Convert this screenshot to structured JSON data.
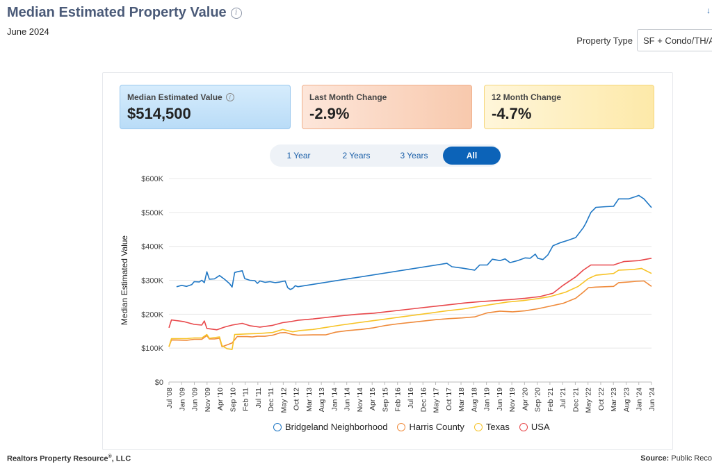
{
  "header": {
    "title": "Median Estimated Property Value",
    "subtitle": "June 2024",
    "corner_glyph": "↓"
  },
  "property_type": {
    "label": "Property Type",
    "value": "SF + Condo/TH/A"
  },
  "cards": [
    {
      "label": "Median Estimated Value",
      "value": "$514,500",
      "info": "i"
    },
    {
      "label": "Last Month Change",
      "value": "-2.9%"
    },
    {
      "label": "12 Month Change",
      "value": "-4.7%"
    }
  ],
  "range_tabs": [
    {
      "label": "1 Year",
      "active": false
    },
    {
      "label": "2 Years",
      "active": false
    },
    {
      "label": "3 Years",
      "active": false
    },
    {
      "label": "All",
      "active": true
    }
  ],
  "footer": {
    "left_main": "Realtors Property Resource",
    "left_sup": "®",
    "left_tail": ", LLC",
    "right_label": "Source:",
    "right_value": " Public Reco"
  },
  "chart_data": {
    "type": "line",
    "ylabel": "Median Estimated Value",
    "ylim": [
      0,
      600000
    ],
    "yticks": [
      0,
      100000,
      200000,
      300000,
      400000,
      500000,
      600000
    ],
    "ytick_labels": [
      "$0",
      "$100K",
      "$200K",
      "$300K",
      "$400K",
      "$500K",
      "$600K"
    ],
    "xlim": [
      "2008-07",
      "2024-06"
    ],
    "xtick_labels": [
      "Jul '08",
      "Jan '09",
      "Jun '09",
      "Nov '09",
      "Apr '10",
      "Sep '10",
      "Feb '11",
      "Jul '11",
      "Dec '11",
      "May '12",
      "Oct '12",
      "Mar '13",
      "Aug '13",
      "Jan '14",
      "Jun '14",
      "Nov '14",
      "Apr '15",
      "Sep '15",
      "Feb '16",
      "Jul '16",
      "Dec '16",
      "May '17",
      "Oct '17",
      "Mar '18",
      "Aug '18",
      "Jan '19",
      "Jun '19",
      "Nov '19",
      "Apr '20",
      "Sep '20",
      "Feb '21",
      "Jul '21",
      "Dec '21",
      "May '22",
      "Oct '22",
      "Mar '23",
      "Aug '23",
      "Jan '24",
      "Jun '24"
    ],
    "grid": true,
    "legend_position": "bottom",
    "series": [
      {
        "name": "Bridgeland Neighborhood",
        "color": "#1f77c4",
        "points": [
          [
            "2008-10",
            281000
          ],
          [
            "2008-12",
            285000
          ],
          [
            "2009-02",
            282000
          ],
          [
            "2009-04",
            287000
          ],
          [
            "2009-05",
            296000
          ],
          [
            "2009-07",
            295000
          ],
          [
            "2009-08",
            300000
          ],
          [
            "2009-09",
            293000
          ],
          [
            "2009-10",
            325000
          ],
          [
            "2009-11",
            303000
          ],
          [
            "2010-01",
            304000
          ],
          [
            "2010-03",
            314000
          ],
          [
            "2010-05",
            303000
          ],
          [
            "2010-07",
            290000
          ],
          [
            "2010-08",
            280000
          ],
          [
            "2010-09",
            323000
          ],
          [
            "2010-10",
            325000
          ],
          [
            "2010-12",
            328000
          ],
          [
            "2011-01",
            305000
          ],
          [
            "2011-03",
            300000
          ],
          [
            "2011-05",
            299000
          ],
          [
            "2011-06",
            291000
          ],
          [
            "2011-07",
            298000
          ],
          [
            "2011-09",
            294000
          ],
          [
            "2011-11",
            296000
          ],
          [
            "2012-01",
            293000
          ],
          [
            "2012-03",
            295000
          ],
          [
            "2012-05",
            298000
          ],
          [
            "2012-06",
            278000
          ],
          [
            "2012-07",
            273000
          ],
          [
            "2012-08",
            276000
          ],
          [
            "2012-09",
            284000
          ],
          [
            "2012-10",
            281000
          ],
          [
            "2017-09",
            350000
          ],
          [
            "2017-11",
            340000
          ],
          [
            "2018-03",
            336000
          ],
          [
            "2018-08",
            330000
          ],
          [
            "2018-10",
            345000
          ],
          [
            "2019-01",
            345000
          ],
          [
            "2019-03",
            362000
          ],
          [
            "2019-06",
            358000
          ],
          [
            "2019-08",
            363000
          ],
          [
            "2019-10",
            352000
          ],
          [
            "2020-01",
            358000
          ],
          [
            "2020-04",
            366000
          ],
          [
            "2020-06",
            365000
          ],
          [
            "2020-08",
            377000
          ],
          [
            "2020-09",
            365000
          ],
          [
            "2020-11",
            361000
          ],
          [
            "2021-01",
            375000
          ],
          [
            "2021-03",
            402000
          ],
          [
            "2021-06",
            411000
          ],
          [
            "2021-09",
            418000
          ],
          [
            "2021-12",
            426000
          ],
          [
            "2022-03",
            455000
          ],
          [
            "2022-04",
            468000
          ],
          [
            "2022-06",
            500000
          ],
          [
            "2022-08",
            515000
          ],
          [
            "2022-12",
            517000
          ],
          [
            "2023-03",
            518000
          ],
          [
            "2023-05",
            540000
          ],
          [
            "2023-09",
            540000
          ],
          [
            "2023-11",
            545000
          ],
          [
            "2024-01",
            550000
          ],
          [
            "2024-03",
            540000
          ],
          [
            "2024-06",
            514500
          ]
        ]
      },
      {
        "name": "Harris County",
        "color": "#ef8a3a",
        "points": [
          [
            "2008-07",
            104000
          ],
          [
            "2008-08",
            124000
          ],
          [
            "2009-02",
            123000
          ],
          [
            "2009-05",
            126000
          ],
          [
            "2009-08",
            126000
          ],
          [
            "2009-10",
            137000
          ],
          [
            "2009-11",
            127000
          ],
          [
            "2010-01",
            127000
          ],
          [
            "2010-03",
            129000
          ],
          [
            "2010-04",
            104000
          ],
          [
            "2010-08",
            115000
          ],
          [
            "2010-10",
            134000
          ],
          [
            "2011-02",
            134000
          ],
          [
            "2011-04",
            133000
          ],
          [
            "2011-06",
            135000
          ],
          [
            "2011-09",
            135000
          ],
          [
            "2011-12",
            138000
          ],
          [
            "2012-03",
            145000
          ],
          [
            "2012-05",
            146000
          ],
          [
            "2012-08",
            140000
          ],
          [
            "2012-10",
            138000
          ],
          [
            "2013-04",
            139000
          ],
          [
            "2013-09",
            139000
          ],
          [
            "2014-01",
            147000
          ],
          [
            "2014-06",
            152000
          ],
          [
            "2014-11",
            155000
          ],
          [
            "2015-04",
            160000
          ],
          [
            "2015-09",
            167000
          ],
          [
            "2016-02",
            172000
          ],
          [
            "2016-07",
            176000
          ],
          [
            "2016-12",
            180000
          ],
          [
            "2017-05",
            184000
          ],
          [
            "2017-10",
            187000
          ],
          [
            "2018-03",
            189000
          ],
          [
            "2018-08",
            192000
          ],
          [
            "2019-01",
            204000
          ],
          [
            "2019-06",
            209000
          ],
          [
            "2019-11",
            207000
          ],
          [
            "2020-04",
            210000
          ],
          [
            "2020-09",
            216000
          ],
          [
            "2021-02",
            224000
          ],
          [
            "2021-07",
            232000
          ],
          [
            "2021-12",
            247000
          ],
          [
            "2022-03",
            265000
          ],
          [
            "2022-05",
            278000
          ],
          [
            "2022-08",
            280000
          ],
          [
            "2023-03",
            282000
          ],
          [
            "2023-05",
            293000
          ],
          [
            "2023-09",
            295000
          ],
          [
            "2023-12",
            297000
          ],
          [
            "2024-03",
            298000
          ],
          [
            "2024-06",
            282000
          ]
        ]
      },
      {
        "name": "Texas",
        "color": "#f7c327",
        "points": [
          [
            "2008-07",
            104000
          ],
          [
            "2008-08",
            128000
          ],
          [
            "2009-02",
            128000
          ],
          [
            "2009-05",
            130000
          ],
          [
            "2009-08",
            130000
          ],
          [
            "2009-10",
            140000
          ],
          [
            "2009-11",
            129000
          ],
          [
            "2010-01",
            131000
          ],
          [
            "2010-03",
            133000
          ],
          [
            "2010-04",
            107000
          ],
          [
            "2010-06",
            98000
          ],
          [
            "2010-08",
            96000
          ],
          [
            "2010-09",
            140000
          ],
          [
            "2011-02",
            142000
          ],
          [
            "2011-06",
            143000
          ],
          [
            "2011-12",
            146000
          ],
          [
            "2012-04",
            155000
          ],
          [
            "2012-08",
            148000
          ],
          [
            "2012-11",
            152000
          ],
          [
            "2013-04",
            155000
          ],
          [
            "2013-09",
            161000
          ],
          [
            "2014-03",
            168000
          ],
          [
            "2014-09",
            174000
          ],
          [
            "2015-03",
            180000
          ],
          [
            "2015-09",
            186000
          ],
          [
            "2016-03",
            192000
          ],
          [
            "2016-09",
            198000
          ],
          [
            "2017-03",
            204000
          ],
          [
            "2017-09",
            210000
          ],
          [
            "2018-03",
            215000
          ],
          [
            "2018-09",
            222000
          ],
          [
            "2019-03",
            229000
          ],
          [
            "2019-09",
            236000
          ],
          [
            "2020-03",
            240000
          ],
          [
            "2020-09",
            246000
          ],
          [
            "2021-02",
            252000
          ],
          [
            "2021-08",
            265000
          ],
          [
            "2022-01",
            282000
          ],
          [
            "2022-05",
            305000
          ],
          [
            "2022-08",
            315000
          ],
          [
            "2023-03",
            320000
          ],
          [
            "2023-05",
            330000
          ],
          [
            "2023-11",
            332000
          ],
          [
            "2024-02",
            335000
          ],
          [
            "2024-06",
            320000
          ]
        ]
      },
      {
        "name": "USA",
        "color": "#e8474a",
        "points": [
          [
            "2008-07",
            160000
          ],
          [
            "2008-08",
            183000
          ],
          [
            "2009-01",
            178000
          ],
          [
            "2009-05",
            170000
          ],
          [
            "2009-08",
            168000
          ],
          [
            "2009-09",
            180000
          ],
          [
            "2009-10",
            158000
          ],
          [
            "2010-02",
            154000
          ],
          [
            "2010-05",
            162000
          ],
          [
            "2010-08",
            168000
          ],
          [
            "2010-12",
            173000
          ],
          [
            "2011-03",
            166000
          ],
          [
            "2011-07",
            162000
          ],
          [
            "2011-12",
            167000
          ],
          [
            "2012-04",
            175000
          ],
          [
            "2012-07",
            178000
          ],
          [
            "2012-10",
            182000
          ],
          [
            "2013-04",
            186000
          ],
          [
            "2013-10",
            191000
          ],
          [
            "2014-04",
            196000
          ],
          [
            "2014-10",
            200000
          ],
          [
            "2015-04",
            203000
          ],
          [
            "2015-10",
            208000
          ],
          [
            "2016-04",
            213000
          ],
          [
            "2016-10",
            218000
          ],
          [
            "2017-04",
            223000
          ],
          [
            "2017-10",
            228000
          ],
          [
            "2018-04",
            233000
          ],
          [
            "2018-10",
            237000
          ],
          [
            "2019-04",
            240000
          ],
          [
            "2019-10",
            243000
          ],
          [
            "2020-04",
            247000
          ],
          [
            "2020-10",
            252000
          ],
          [
            "2021-03",
            262000
          ],
          [
            "2021-07",
            285000
          ],
          [
            "2021-12",
            310000
          ],
          [
            "2022-03",
            330000
          ],
          [
            "2022-06",
            345000
          ],
          [
            "2022-09",
            345000
          ],
          [
            "2023-03",
            345000
          ],
          [
            "2023-07",
            355000
          ],
          [
            "2024-01",
            358000
          ],
          [
            "2024-06",
            365000
          ]
        ]
      }
    ]
  }
}
